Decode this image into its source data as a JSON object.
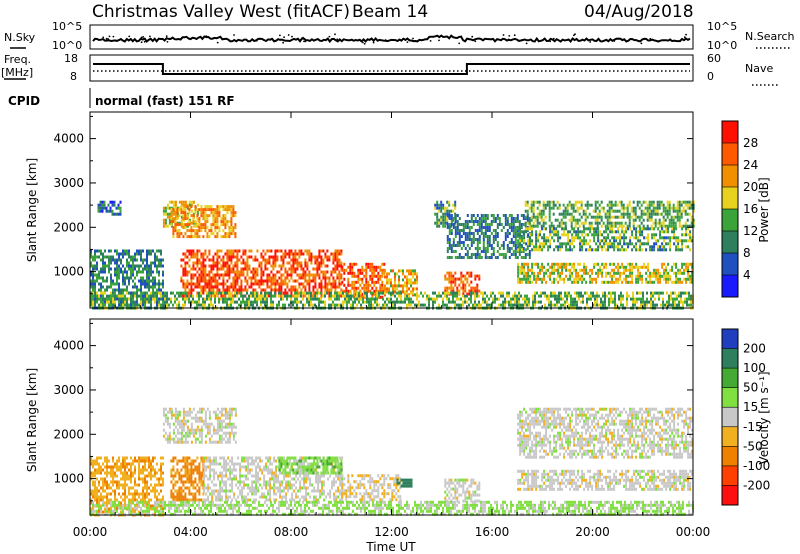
{
  "header": {
    "title": "Christmas Valley West (fitACF)",
    "beam": "Beam 14",
    "date": "04/Aug/2018"
  },
  "panels": {
    "nsky": {
      "label": "N.Sky",
      "top_tick": "10^5",
      "bottom_tick": "10^0",
      "right_top": "10^5",
      "right_bottom": "10^0",
      "right_label": "N.Search"
    },
    "freq": {
      "label_line1": "Freq.",
      "label_line2": "[MHz]",
      "top_tick": "18",
      "bottom_tick": "8",
      "right_top": "60",
      "right_bottom": "0",
      "right_label": "Nave"
    },
    "cpid": {
      "label": "CPID",
      "value": "normal (fast) 151 RF"
    }
  },
  "axes": {
    "ylabel": "Slant Range [km]",
    "xlabel": "Time UT",
    "yticks": [
      "1000",
      "2000",
      "3000",
      "4000"
    ],
    "xticks": [
      "00:00",
      "04:00",
      "08:00",
      "12:00",
      "16:00",
      "20:00",
      "00:00"
    ]
  },
  "colorbars": {
    "power": {
      "label": "Power [dB]",
      "ticks": [
        "4",
        "8",
        "12",
        "16",
        "20",
        "24",
        "28"
      ],
      "colors": [
        "#1a1aff",
        "#2050c0",
        "#2e7f5e",
        "#3aa33a",
        "#e8d21e",
        "#f09000",
        "#ff5a00",
        "#ff1000"
      ]
    },
    "velocity": {
      "label": "Velocity [m s⁻¹]",
      "ticks": [
        "200",
        "100",
        "50",
        "15",
        "-15",
        "-50",
        "-100",
        "-200"
      ],
      "colors": [
        "#1f3fbf",
        "#2e7f5e",
        "#44aa33",
        "#80e040",
        "#c8c8c8",
        "#f0b020",
        "#f08000",
        "#ff4000",
        "#ff1010"
      ]
    }
  },
  "chart_data": [
    {
      "type": "heatmap",
      "title": "Power",
      "xlabel": "Time UT",
      "ylabel": "Slant Range [km]",
      "xlim": [
        "00:00",
        "24:00"
      ],
      "ylim": [
        180,
        4600
      ],
      "zlabel": "Power [dB]",
      "zlim": [
        0,
        32
      ],
      "regions": [
        {
          "t": [
            0.0,
            2.9
          ],
          "r": [
            200,
            1500
          ],
          "db": 10
        },
        {
          "t": [
            0.3,
            1.2
          ],
          "r": [
            2300,
            2600
          ],
          "db": 8
        },
        {
          "t": [
            2.9,
            4.3
          ],
          "r": [
            2000,
            2600
          ],
          "db": 18
        },
        {
          "t": [
            3.2,
            5.8
          ],
          "r": [
            1800,
            2500
          ],
          "db": 22
        },
        {
          "t": [
            3.6,
            10.0
          ],
          "r": [
            450,
            1500
          ],
          "db": 27
        },
        {
          "t": [
            10.0,
            11.7
          ],
          "r": [
            450,
            1200
          ],
          "db": 26
        },
        {
          "t": [
            11.7,
            13.0
          ],
          "r": [
            500,
            1050
          ],
          "db": 20
        },
        {
          "t": [
            14.1,
            15.5
          ],
          "r": [
            500,
            1000
          ],
          "db": 26
        },
        {
          "t": [
            13.7,
            14.5
          ],
          "r": [
            2000,
            2600
          ],
          "db": 12
        },
        {
          "t": [
            14.2,
            17.5
          ],
          "r": [
            1300,
            2300
          ],
          "db": 10
        },
        {
          "t": [
            17.3,
            24.0
          ],
          "r": [
            2000,
            2600
          ],
          "db": 14
        },
        {
          "t": [
            17.0,
            24.0
          ],
          "r": [
            1500,
            2000
          ],
          "db": 13
        },
        {
          "t": [
            17.0,
            24.0
          ],
          "r": [
            750,
            1200
          ],
          "db": 18
        },
        {
          "t": [
            0.0,
            24.0
          ],
          "r": [
            200,
            550
          ],
          "db": 14
        }
      ]
    },
    {
      "type": "heatmap",
      "title": "Velocity",
      "xlabel": "Time UT",
      "ylabel": "Slant Range [km]",
      "xlim": [
        "00:00",
        "24:00"
      ],
      "ylim": [
        180,
        4600
      ],
      "zlabel": "Velocity [m s⁻¹]",
      "zlim": [
        -250,
        250
      ],
      "regions": [
        {
          "t": [
            0.0,
            2.9
          ],
          "r": [
            200,
            1500
          ],
          "v": -40
        },
        {
          "t": [
            2.9,
            5.8
          ],
          "r": [
            1800,
            2600
          ],
          "v": 0
        },
        {
          "t": [
            3.2,
            4.5
          ],
          "r": [
            500,
            1500
          ],
          "v": -60
        },
        {
          "t": [
            4.5,
            10.0
          ],
          "r": [
            550,
            1500
          ],
          "v": 0
        },
        {
          "t": [
            7.5,
            10.0
          ],
          "r": [
            1100,
            1500
          ],
          "v": 40
        },
        {
          "t": [
            10.0,
            12.4
          ],
          "r": [
            500,
            1100
          ],
          "v": -10
        },
        {
          "t": [
            12.2,
            12.8
          ],
          "r": [
            800,
            1000
          ],
          "v": 150
        },
        {
          "t": [
            14.1,
            15.5
          ],
          "r": [
            500,
            1000
          ],
          "v": 0
        },
        {
          "t": [
            17.0,
            24.0
          ],
          "r": [
            1500,
            2600
          ],
          "v": 0
        },
        {
          "t": [
            17.0,
            24.0
          ],
          "r": [
            750,
            1200
          ],
          "v": 0
        },
        {
          "t": [
            0.0,
            24.0
          ],
          "r": [
            200,
            500
          ],
          "v": 20
        }
      ]
    }
  ]
}
